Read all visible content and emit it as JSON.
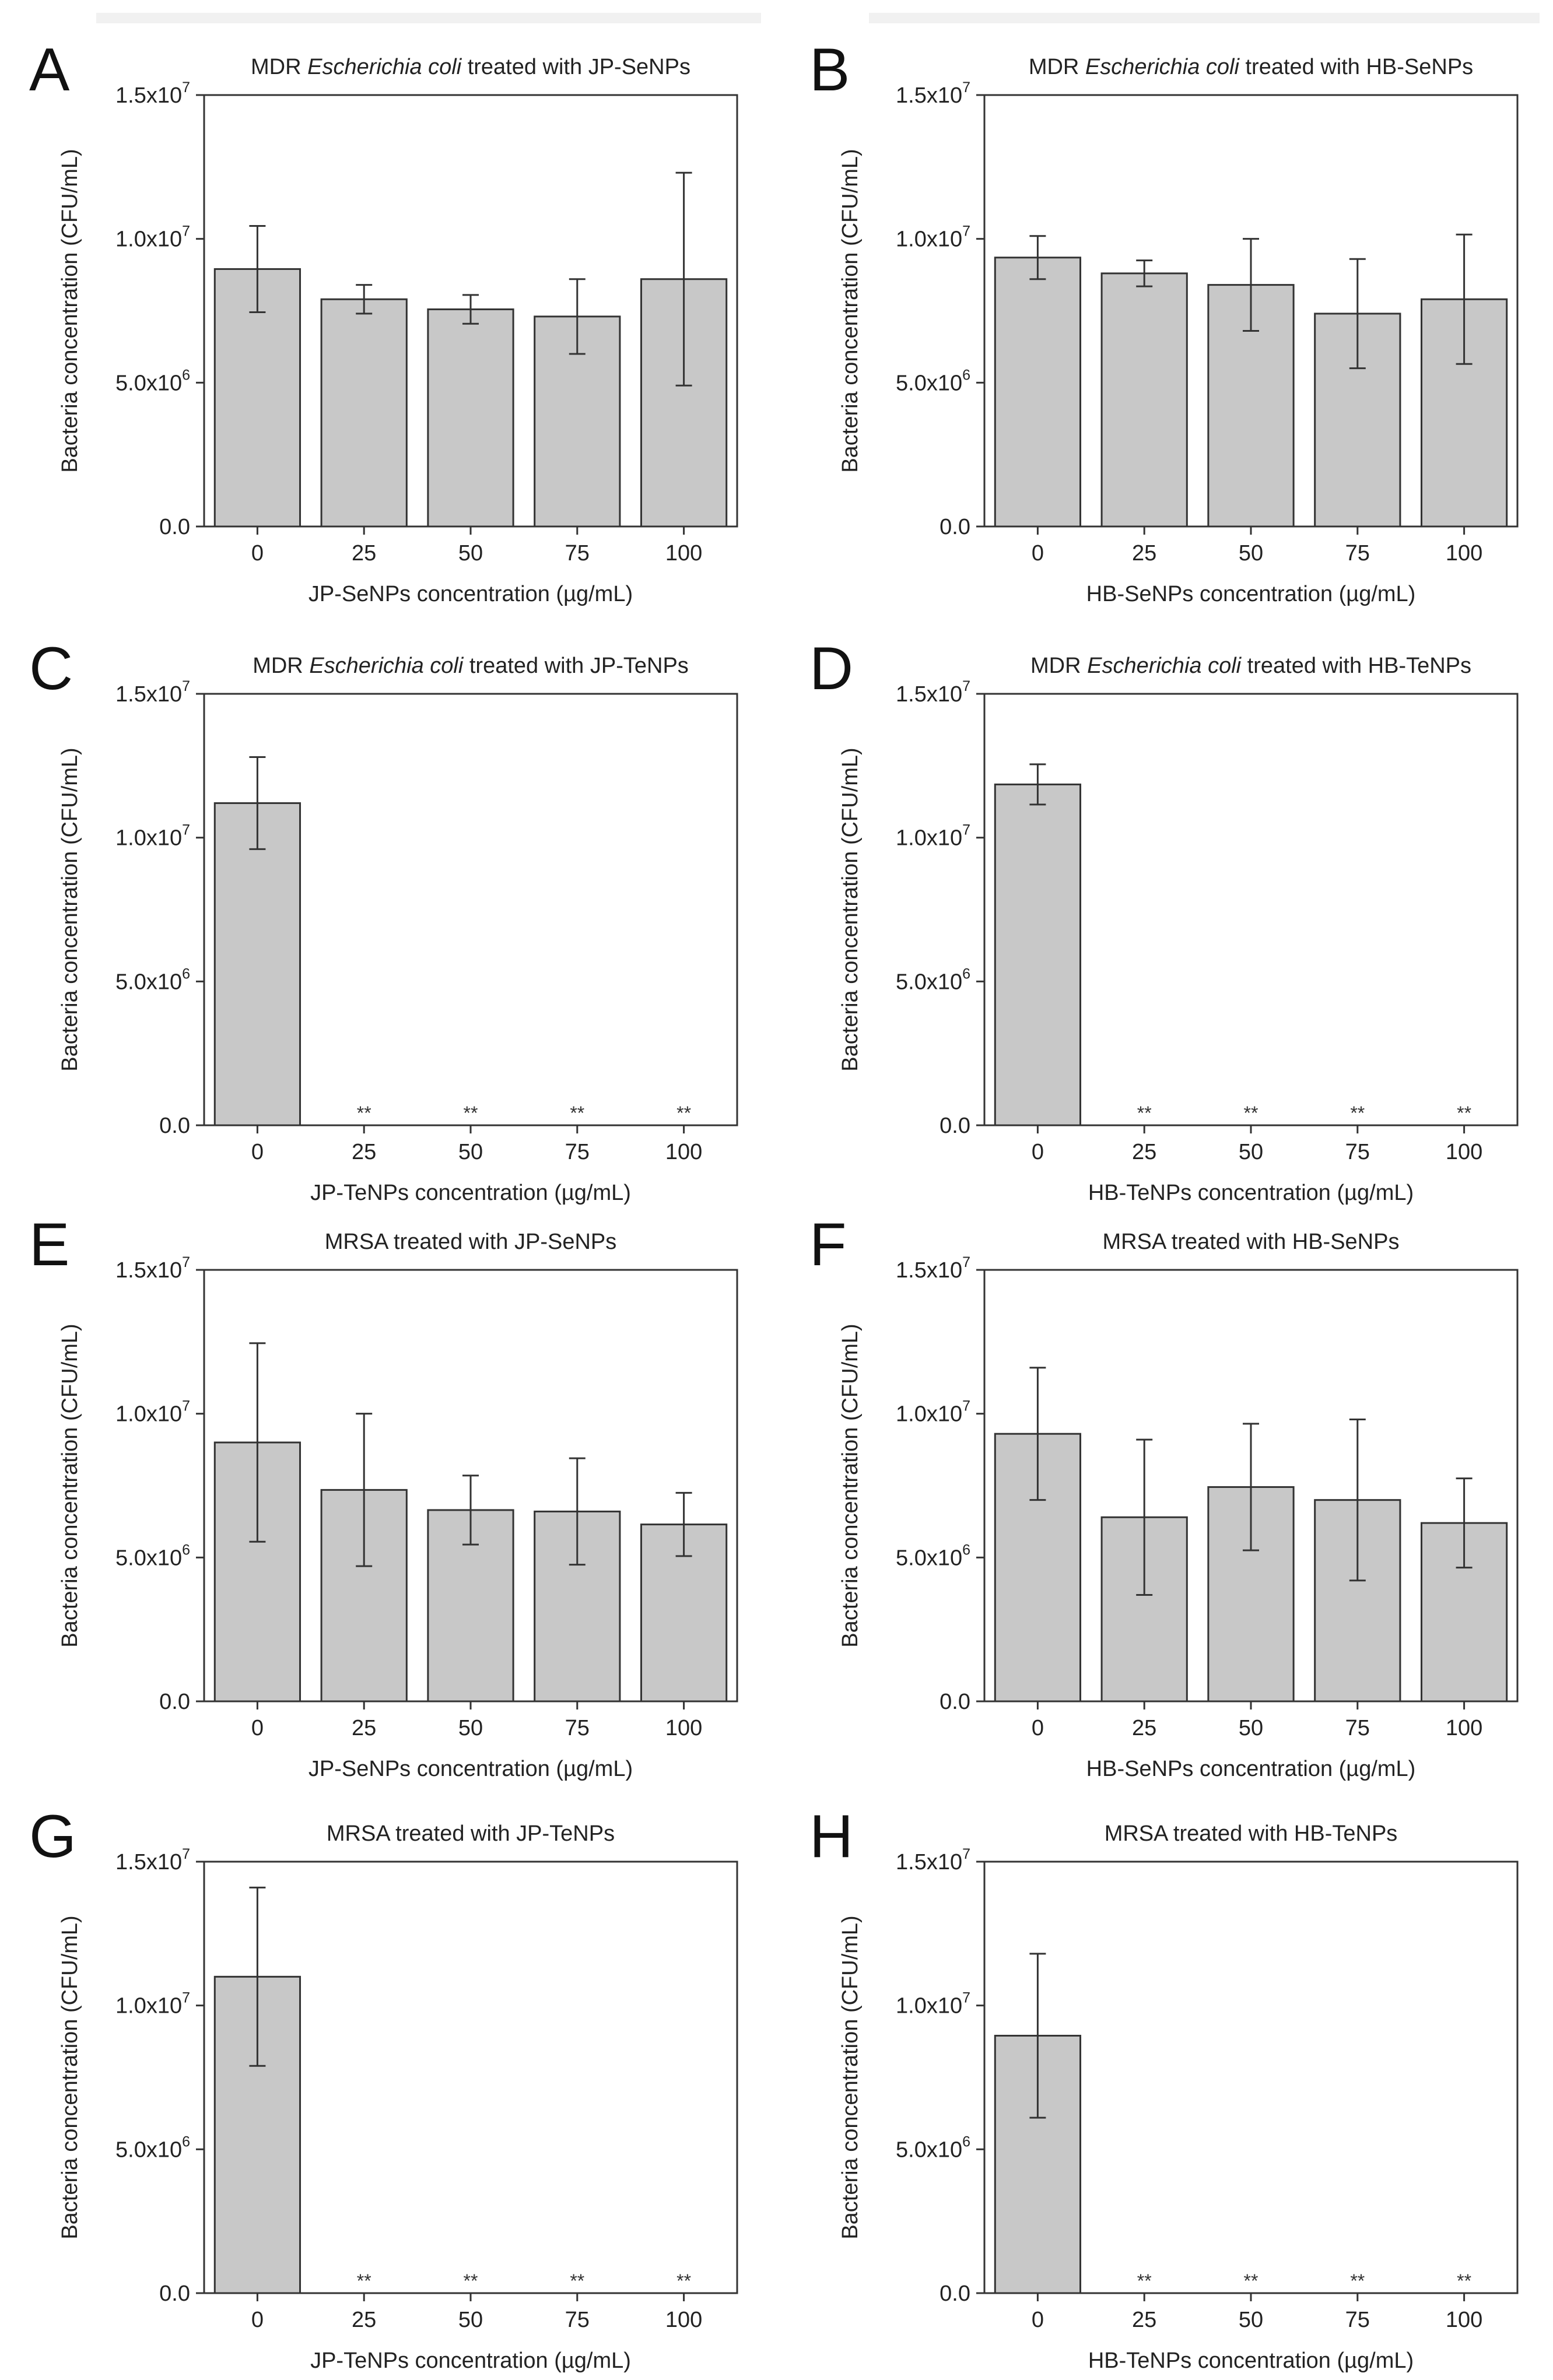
{
  "chart_data": [
    {
      "panel": "A",
      "type": "bar",
      "title": "MDR Escherichia coli treated with JP-SeNPs",
      "title_italic": "Escherichia coli",
      "xlabel": "JP-SeNPs concentration (µg/mL)",
      "ylabel": "Bacteria concentration (CFU/mL)",
      "categories": [
        "0",
        "25",
        "50",
        "75",
        "100"
      ],
      "values": [
        8950000,
        7900000,
        7550000,
        7300000,
        8600000
      ],
      "errors": [
        1500000,
        500000,
        500000,
        1300000,
        3700000
      ],
      "significance": [
        "",
        "",
        "",
        "",
        ""
      ],
      "ylim": [
        0,
        15000000
      ],
      "yticks": [
        {
          "m": "0.0",
          "e": ""
        },
        {
          "m": "5.0x10",
          "e": "6"
        },
        {
          "m": "1.0x10",
          "e": "7"
        },
        {
          "m": "1.5x10",
          "e": "7"
        }
      ]
    },
    {
      "panel": "B",
      "type": "bar",
      "title": "MDR Escherichia coli treated with HB-SeNPs",
      "title_italic": "Escherichia coli",
      "xlabel": "HB-SeNPs concentration (µg/mL)",
      "ylabel": "Bacteria concentration (CFU/mL)",
      "categories": [
        "0",
        "25",
        "50",
        "75",
        "100"
      ],
      "values": [
        9350000,
        8800000,
        8400000,
        7400000,
        7900000
      ],
      "errors": [
        750000,
        450000,
        1600000,
        1900000,
        2250000
      ],
      "significance": [
        "",
        "",
        "",
        "",
        ""
      ],
      "ylim": [
        0,
        15000000
      ],
      "yticks": [
        {
          "m": "0.0",
          "e": ""
        },
        {
          "m": "5.0x10",
          "e": "6"
        },
        {
          "m": "1.0x10",
          "e": "7"
        },
        {
          "m": "1.5x10",
          "e": "7"
        }
      ]
    },
    {
      "panel": "C",
      "type": "bar",
      "title": "MDR Escherichia coli treated with JP-TeNPs",
      "title_italic": "Escherichia coli",
      "xlabel": "JP-TeNPs concentration (µg/mL)",
      "ylabel": "Bacteria concentration (CFU/mL)",
      "categories": [
        "0",
        "25",
        "50",
        "75",
        "100"
      ],
      "values": [
        11200000,
        0,
        0,
        0,
        0
      ],
      "errors": [
        1600000,
        0,
        0,
        0,
        0
      ],
      "significance": [
        "",
        "**",
        "**",
        "**",
        "**"
      ],
      "ylim": [
        0,
        15000000
      ],
      "yticks": [
        {
          "m": "0.0",
          "e": ""
        },
        {
          "m": "5.0x10",
          "e": "6"
        },
        {
          "m": "1.0x10",
          "e": "7"
        },
        {
          "m": "1.5x10",
          "e": "7"
        }
      ]
    },
    {
      "panel": "D",
      "type": "bar",
      "title": "MDR Escherichia coli treated with HB-TeNPs",
      "title_italic": "Escherichia coli",
      "xlabel": "HB-TeNPs concentration (µg/mL)",
      "ylabel": "Bacteria concentration (CFU/mL)",
      "categories": [
        "0",
        "25",
        "50",
        "75",
        "100"
      ],
      "values": [
        11850000,
        0,
        0,
        0,
        0
      ],
      "errors": [
        700000,
        0,
        0,
        0,
        0
      ],
      "significance": [
        "",
        "**",
        "**",
        "**",
        "**"
      ],
      "ylim": [
        0,
        15000000
      ],
      "yticks": [
        {
          "m": "0.0",
          "e": ""
        },
        {
          "m": "5.0x10",
          "e": "6"
        },
        {
          "m": "1.0x10",
          "e": "7"
        },
        {
          "m": "1.5x10",
          "e": "7"
        }
      ]
    },
    {
      "panel": "E",
      "type": "bar",
      "title": "MRSA treated with JP-SeNPs",
      "title_italic": "",
      "xlabel": "JP-SeNPs concentration (µg/mL)",
      "ylabel": "Bacteria concentration (CFU/mL)",
      "categories": [
        "0",
        "25",
        "50",
        "75",
        "100"
      ],
      "values": [
        9000000,
        7350000,
        6650000,
        6600000,
        6150000
      ],
      "errors": [
        3450000,
        2650000,
        1200000,
        1850000,
        1100000
      ],
      "significance": [
        "",
        "",
        "",
        "",
        ""
      ],
      "ylim": [
        0,
        15000000
      ],
      "yticks": [
        {
          "m": "0.0",
          "e": ""
        },
        {
          "m": "5.0x10",
          "e": "6"
        },
        {
          "m": "1.0x10",
          "e": "7"
        },
        {
          "m": "1.5x10",
          "e": "7"
        }
      ]
    },
    {
      "panel": "F",
      "type": "bar",
      "title": "MRSA treated with HB-SeNPs",
      "title_italic": "",
      "xlabel": "HB-SeNPs concentration (µg/mL)",
      "ylabel": "Bacteria concentration (CFU/mL)",
      "categories": [
        "0",
        "25",
        "50",
        "75",
        "100"
      ],
      "values": [
        9300000,
        6400000,
        7450000,
        7000000,
        6200000
      ],
      "errors": [
        2300000,
        2700000,
        2200000,
        2800000,
        1550000
      ],
      "significance": [
        "",
        "",
        "",
        "",
        ""
      ],
      "ylim": [
        0,
        15000000
      ],
      "yticks": [
        {
          "m": "0.0",
          "e": ""
        },
        {
          "m": "5.0x10",
          "e": "6"
        },
        {
          "m": "1.0x10",
          "e": "7"
        },
        {
          "m": "1.5x10",
          "e": "7"
        }
      ]
    },
    {
      "panel": "G",
      "type": "bar",
      "title": "MRSA treated with JP-TeNPs",
      "title_italic": "",
      "xlabel": "JP-TeNPs concentration (µg/mL)",
      "ylabel": "Bacteria concentration (CFU/mL)",
      "categories": [
        "0",
        "25",
        "50",
        "75",
        "100"
      ],
      "values": [
        11000000,
        0,
        0,
        0,
        0
      ],
      "errors": [
        3100000,
        0,
        0,
        0,
        0
      ],
      "significance": [
        "",
        "**",
        "**",
        "**",
        "**"
      ],
      "ylim": [
        0,
        15000000
      ],
      "yticks": [
        {
          "m": "0.0",
          "e": ""
        },
        {
          "m": "5.0x10",
          "e": "6"
        },
        {
          "m": "1.0x10",
          "e": "7"
        },
        {
          "m": "1.5x10",
          "e": "7"
        }
      ]
    },
    {
      "panel": "H",
      "type": "bar",
      "title": "MRSA treated with HB-TeNPs",
      "title_italic": "",
      "xlabel": "HB-TeNPs concentration (µg/mL)",
      "ylabel": "Bacteria concentration (CFU/mL)",
      "categories": [
        "0",
        "25",
        "50",
        "75",
        "100"
      ],
      "values": [
        8950000,
        0,
        0,
        0,
        0
      ],
      "errors": [
        2850000,
        0,
        0,
        0,
        0
      ],
      "significance": [
        "",
        "**",
        "**",
        "**",
        "**"
      ],
      "ylim": [
        0,
        15000000
      ],
      "yticks": [
        {
          "m": "0.0",
          "e": ""
        },
        {
          "m": "5.0x10",
          "e": "6"
        },
        {
          "m": "1.0x10",
          "e": "7"
        },
        {
          "m": "1.5x10",
          "e": "7"
        }
      ]
    }
  ]
}
